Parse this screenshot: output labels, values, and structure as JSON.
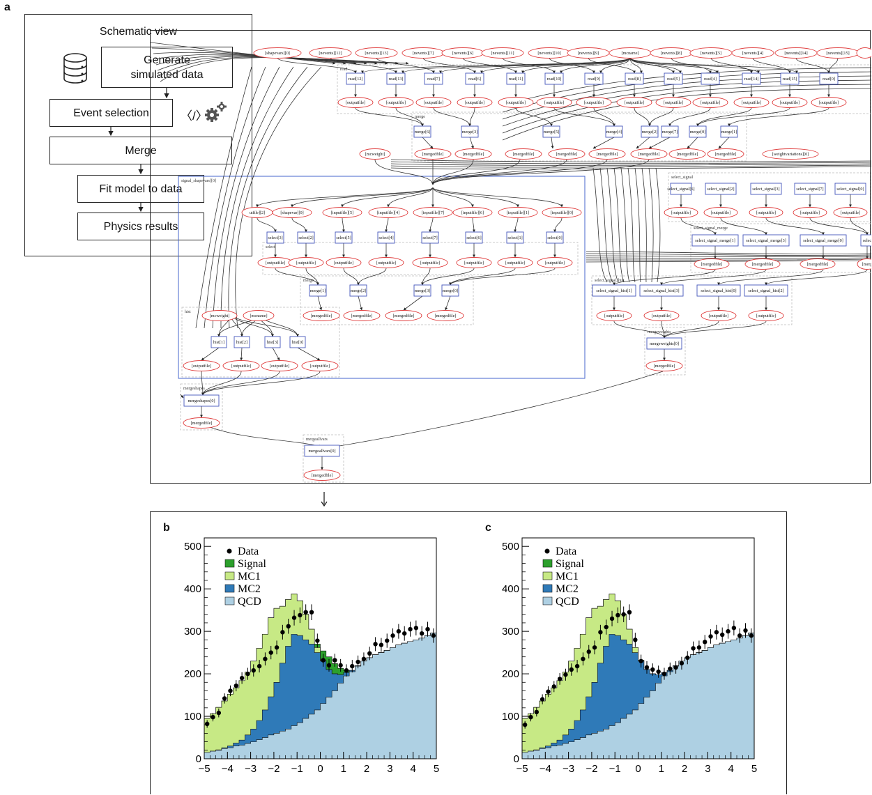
{
  "panel_labels": {
    "a": "a",
    "b": "b",
    "c": "c"
  },
  "schematic": {
    "title": "Schematic view",
    "generate_line1": "Generate",
    "generate_line2": "simulated data",
    "event_selection": "Event selection",
    "merge": "Merge",
    "fit": "Fit model to data",
    "physics": "Physics results",
    "code_glyph": "〈/〉"
  },
  "graph": {
    "top_inputs": [
      "[shapevars][0]",
      "[nevents][12]",
      "[nevents][13]",
      "[nevents][7]",
      "[nevents][6]",
      "[nevents][11]",
      "[nevents][10]",
      "[nevents][9]",
      "[mcname]",
      "[nevents][8]",
      "[nevents][5]",
      "[nevents][4]",
      "[nevents][14]",
      "[nevents][15]"
    ],
    "reads": [
      "read[12]",
      "read[13]",
      "read[7]",
      "read[6]",
      "read[11]",
      "read[10]",
      "read[9]",
      "read[8]",
      "read[5]",
      "read[4]",
      "read[14]",
      "read[15]",
      "read[0]"
    ],
    "cluster_read": "read",
    "cluster_merge": "merge",
    "outputfile": "[outputfile]",
    "mergedfile": "[mergedfile]",
    "top_merges": [
      "merge[6]",
      "merge[3]",
      "merge[5]",
      "merge[4]",
      "merge[2]",
      "merge[7]",
      "merge[0]",
      "merge[1]"
    ],
    "mcweight": "[mcweight]",
    "weightvariations": "[weightvariations][0]",
    "signal_shapevars": "signal_shapevars][0]",
    "row_inputs": [
      "utfile][2]",
      "[shapevar][0]",
      "[inputfile][5]",
      "[inputfile][4]",
      "[inputfile][7]",
      "[inputfile][6]",
      "[inputfile][1]",
      "[inputfile][0]"
    ],
    "cluster_select": "select",
    "selects": [
      "select[3]",
      "select[2]",
      "select[5]",
      "select[4]",
      "select[7]",
      "select[6]",
      "select[1]",
      "select[0]"
    ],
    "mid_merges": [
      "merge[1]",
      "merge[2]",
      "merge[3]",
      "merge[0]"
    ],
    "cluster_hist": "hist",
    "mcweight2": "[mcweight]",
    "mcname2": "[mcname]",
    "hists": [
      "hist[1]",
      "hist[2]",
      "hist[3]",
      "hist[0]"
    ],
    "cluster_mergeshapes": "mergeshapes",
    "mergeshapes": "mergeshapes[0]",
    "cluster_mergeallvars": "mergeallvars",
    "mergeallvars": "mergeallvars[0]",
    "cluster_select_signal": "select_signal",
    "select_signals": [
      "select_signal[6]",
      "select_signal[2]",
      "select_signal[3]",
      "select_signal[7]",
      "select_signal[0]"
    ],
    "cluster_select_signal_merge": "select_signal_merge",
    "select_signal_merges": [
      "select_signal_merge[1]",
      "select_signal_merge[3]",
      "select_signal_merge[0]",
      "selec"
    ],
    "cluster_select_signal_hist": "select_signal_hist",
    "select_signal_hists": [
      "select_signal_hist[1]",
      "select_signal_hist[3]",
      "select_signal_hist[0]",
      "select_signal_hist[2]"
    ],
    "cluster_mergeweights": "mergeweights",
    "mergeweights": "mergeweights[0]",
    "merg_cut": "[merg"
  },
  "chart_data": [
    {
      "type": "area",
      "panel": "b",
      "x_edges_range": [
        -5,
        5
      ],
      "n_bins": 40,
      "xlim": [
        -5,
        5
      ],
      "ylim": [
        0,
        520
      ],
      "xticks": [
        -5,
        -4,
        -3,
        -2,
        -1,
        0,
        1,
        2,
        3,
        4,
        5
      ],
      "yticks": [
        0,
        100,
        200,
        300,
        400,
        500
      ],
      "legend": [
        "Data",
        "Signal",
        "MC1",
        "MC2",
        "QCD"
      ],
      "legend_placement": "top-left",
      "colors": {
        "Signal": "#2ca02c",
        "MC1": "#c7e985",
        "MC2": "#2f7ab8",
        "QCD": "#aed0e3",
        "Data": "#000000"
      },
      "series": [
        {
          "name": "QCD",
          "values": [
            15,
            18,
            20,
            24,
            26,
            30,
            32,
            36,
            40,
            45,
            50,
            56,
            60,
            65,
            70,
            78,
            85,
            95,
            105,
            115,
            130,
            145,
            160,
            178,
            195,
            205,
            218,
            230,
            238,
            245,
            250,
            255,
            262,
            268,
            272,
            276,
            280,
            284,
            290,
            296
          ]
        },
        {
          "name": "MC2",
          "values": [
            0,
            0,
            1,
            2,
            4,
            7,
            12,
            20,
            30,
            45,
            65,
            90,
            120,
            160,
            195,
            215,
            205,
            185,
            165,
            135,
            100,
            65,
            40,
            20,
            8,
            3,
            1,
            0,
            0,
            0,
            0,
            0,
            0,
            0,
            0,
            0,
            0,
            0,
            0,
            0
          ]
        },
        {
          "name": "MC1",
          "values": [
            80,
            88,
            100,
            110,
            122,
            130,
            140,
            148,
            160,
            170,
            178,
            186,
            174,
            134,
            110,
            95,
            82,
            60,
            35,
            12,
            2,
            0,
            0,
            0,
            0,
            0,
            0,
            0,
            0,
            0,
            0,
            0,
            0,
            0,
            0,
            0,
            0,
            0,
            0,
            0
          ]
        },
        {
          "name": "Signal",
          "values": [
            0,
            0,
            0,
            0,
            0,
            0,
            0,
            0,
            0,
            0,
            0,
            0,
            0,
            0,
            0,
            0,
            0,
            0,
            0,
            8,
            22,
            30,
            24,
            15,
            5,
            0,
            0,
            0,
            0,
            0,
            0,
            0,
            0,
            0,
            0,
            0,
            0,
            0,
            0,
            0
          ]
        },
        {
          "name": "Data",
          "values": [
            82,
            98,
            108,
            142,
            160,
            172,
            190,
            200,
            208,
            218,
            235,
            250,
            262,
            298,
            312,
            332,
            338,
            345,
            345,
            278,
            232,
            220,
            232,
            220,
            208,
            218,
            228,
            235,
            248,
            270,
            268,
            278,
            290,
            300,
            295,
            305,
            308,
            295,
            305,
            290
          ]
        }
      ]
    },
    {
      "type": "area",
      "panel": "c",
      "x_edges_range": [
        -5,
        5
      ],
      "n_bins": 40,
      "xlim": [
        -5,
        5
      ],
      "ylim": [
        0,
        520
      ],
      "xticks": [
        -5,
        -4,
        -3,
        -2,
        -1,
        0,
        1,
        2,
        3,
        4,
        5
      ],
      "yticks": [
        0,
        100,
        200,
        300,
        400,
        500
      ],
      "legend": [
        "Data",
        "Signal",
        "MC1",
        "MC2",
        "QCD"
      ],
      "legend_placement": "top-left",
      "colors": {
        "Signal": "#2ca02c",
        "MC1": "#c7e985",
        "MC2": "#2f7ab8",
        "QCD": "#aed0e3",
        "Data": "#000000"
      },
      "series": [
        {
          "name": "QCD",
          "values": [
            15,
            18,
            20,
            24,
            26,
            30,
            32,
            36,
            40,
            45,
            50,
            56,
            60,
            65,
            70,
            78,
            85,
            95,
            105,
            115,
            130,
            145,
            160,
            178,
            195,
            205,
            218,
            230,
            238,
            245,
            250,
            255,
            262,
            268,
            272,
            276,
            280,
            284,
            290,
            296
          ]
        },
        {
          "name": "MC2",
          "values": [
            0,
            0,
            1,
            2,
            4,
            7,
            12,
            20,
            30,
            45,
            65,
            90,
            120,
            160,
            195,
            215,
            205,
            185,
            165,
            135,
            100,
            65,
            40,
            20,
            8,
            3,
            1,
            0,
            0,
            0,
            0,
            0,
            0,
            0,
            0,
            0,
            0,
            0,
            0,
            0
          ]
        },
        {
          "name": "MC1",
          "values": [
            80,
            88,
            100,
            110,
            122,
            130,
            140,
            148,
            160,
            170,
            178,
            186,
            174,
            134,
            110,
            95,
            82,
            60,
            35,
            12,
            2,
            0,
            0,
            0,
            0,
            0,
            0,
            0,
            0,
            0,
            0,
            0,
            0,
            0,
            0,
            0,
            0,
            0,
            0,
            0
          ]
        },
        {
          "name": "Signal",
          "values": [
            0,
            0,
            0,
            0,
            0,
            0,
            0,
            0,
            0,
            0,
            0,
            0,
            0,
            0,
            0,
            0,
            0,
            0,
            0,
            0,
            0,
            0,
            0,
            0,
            0,
            0,
            0,
            0,
            0,
            0,
            0,
            0,
            0,
            0,
            0,
            0,
            0,
            0,
            0,
            0
          ]
        },
        {
          "name": "Data",
          "values": [
            80,
            98,
            110,
            140,
            158,
            170,
            188,
            198,
            210,
            218,
            235,
            252,
            262,
            298,
            310,
            330,
            338,
            340,
            345,
            280,
            230,
            215,
            210,
            205,
            200,
            212,
            215,
            225,
            238,
            260,
            262,
            275,
            288,
            298,
            292,
            300,
            308,
            290,
            302,
            290
          ]
        }
      ]
    }
  ]
}
